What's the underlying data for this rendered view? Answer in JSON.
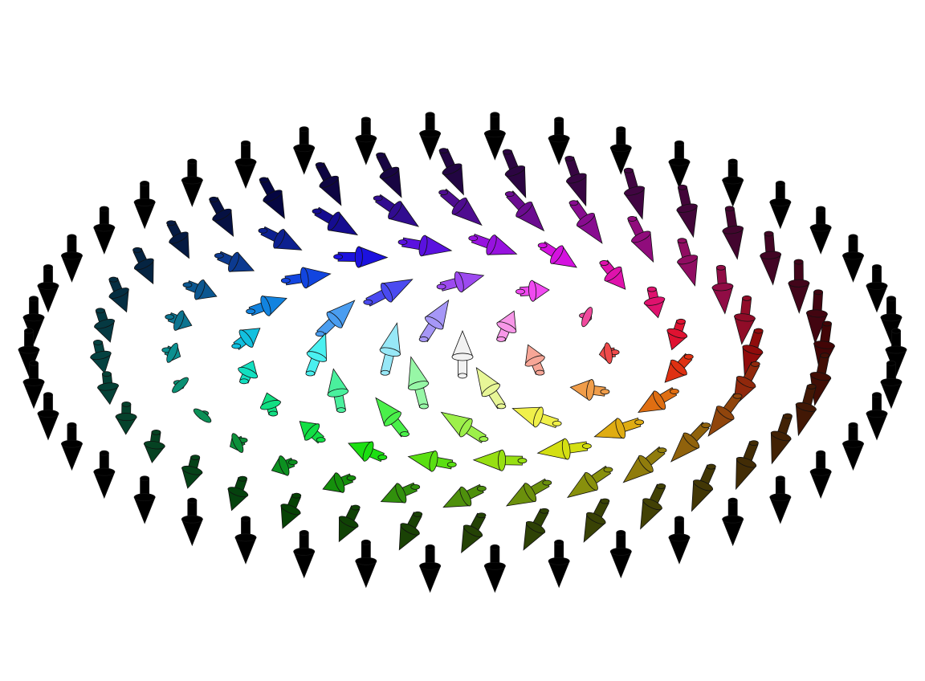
{
  "figure": {
    "type": "vector-field-diagram",
    "background": "#ffffff",
    "rings": [
      {
        "ring": 0,
        "count": 1,
        "polar_deg": 0
      },
      {
        "ring": 1,
        "count": 6,
        "polar_deg": 30
      },
      {
        "ring": 2,
        "count": 12,
        "polar_deg": 65
      },
      {
        "ring": 3,
        "count": 20,
        "polar_deg": 95
      },
      {
        "ring": 4,
        "count": 28,
        "polar_deg": 125
      },
      {
        "ring": 5,
        "count": 36,
        "polar_deg": 155
      },
      {
        "ring": 6,
        "count": 42,
        "polar_deg": 180
      }
    ],
    "colors": {
      "center": "#f2f2f2",
      "outer": "#000000",
      "stroke": "#111111"
    },
    "arrow_glyph": "cone-arrow-icon"
  }
}
